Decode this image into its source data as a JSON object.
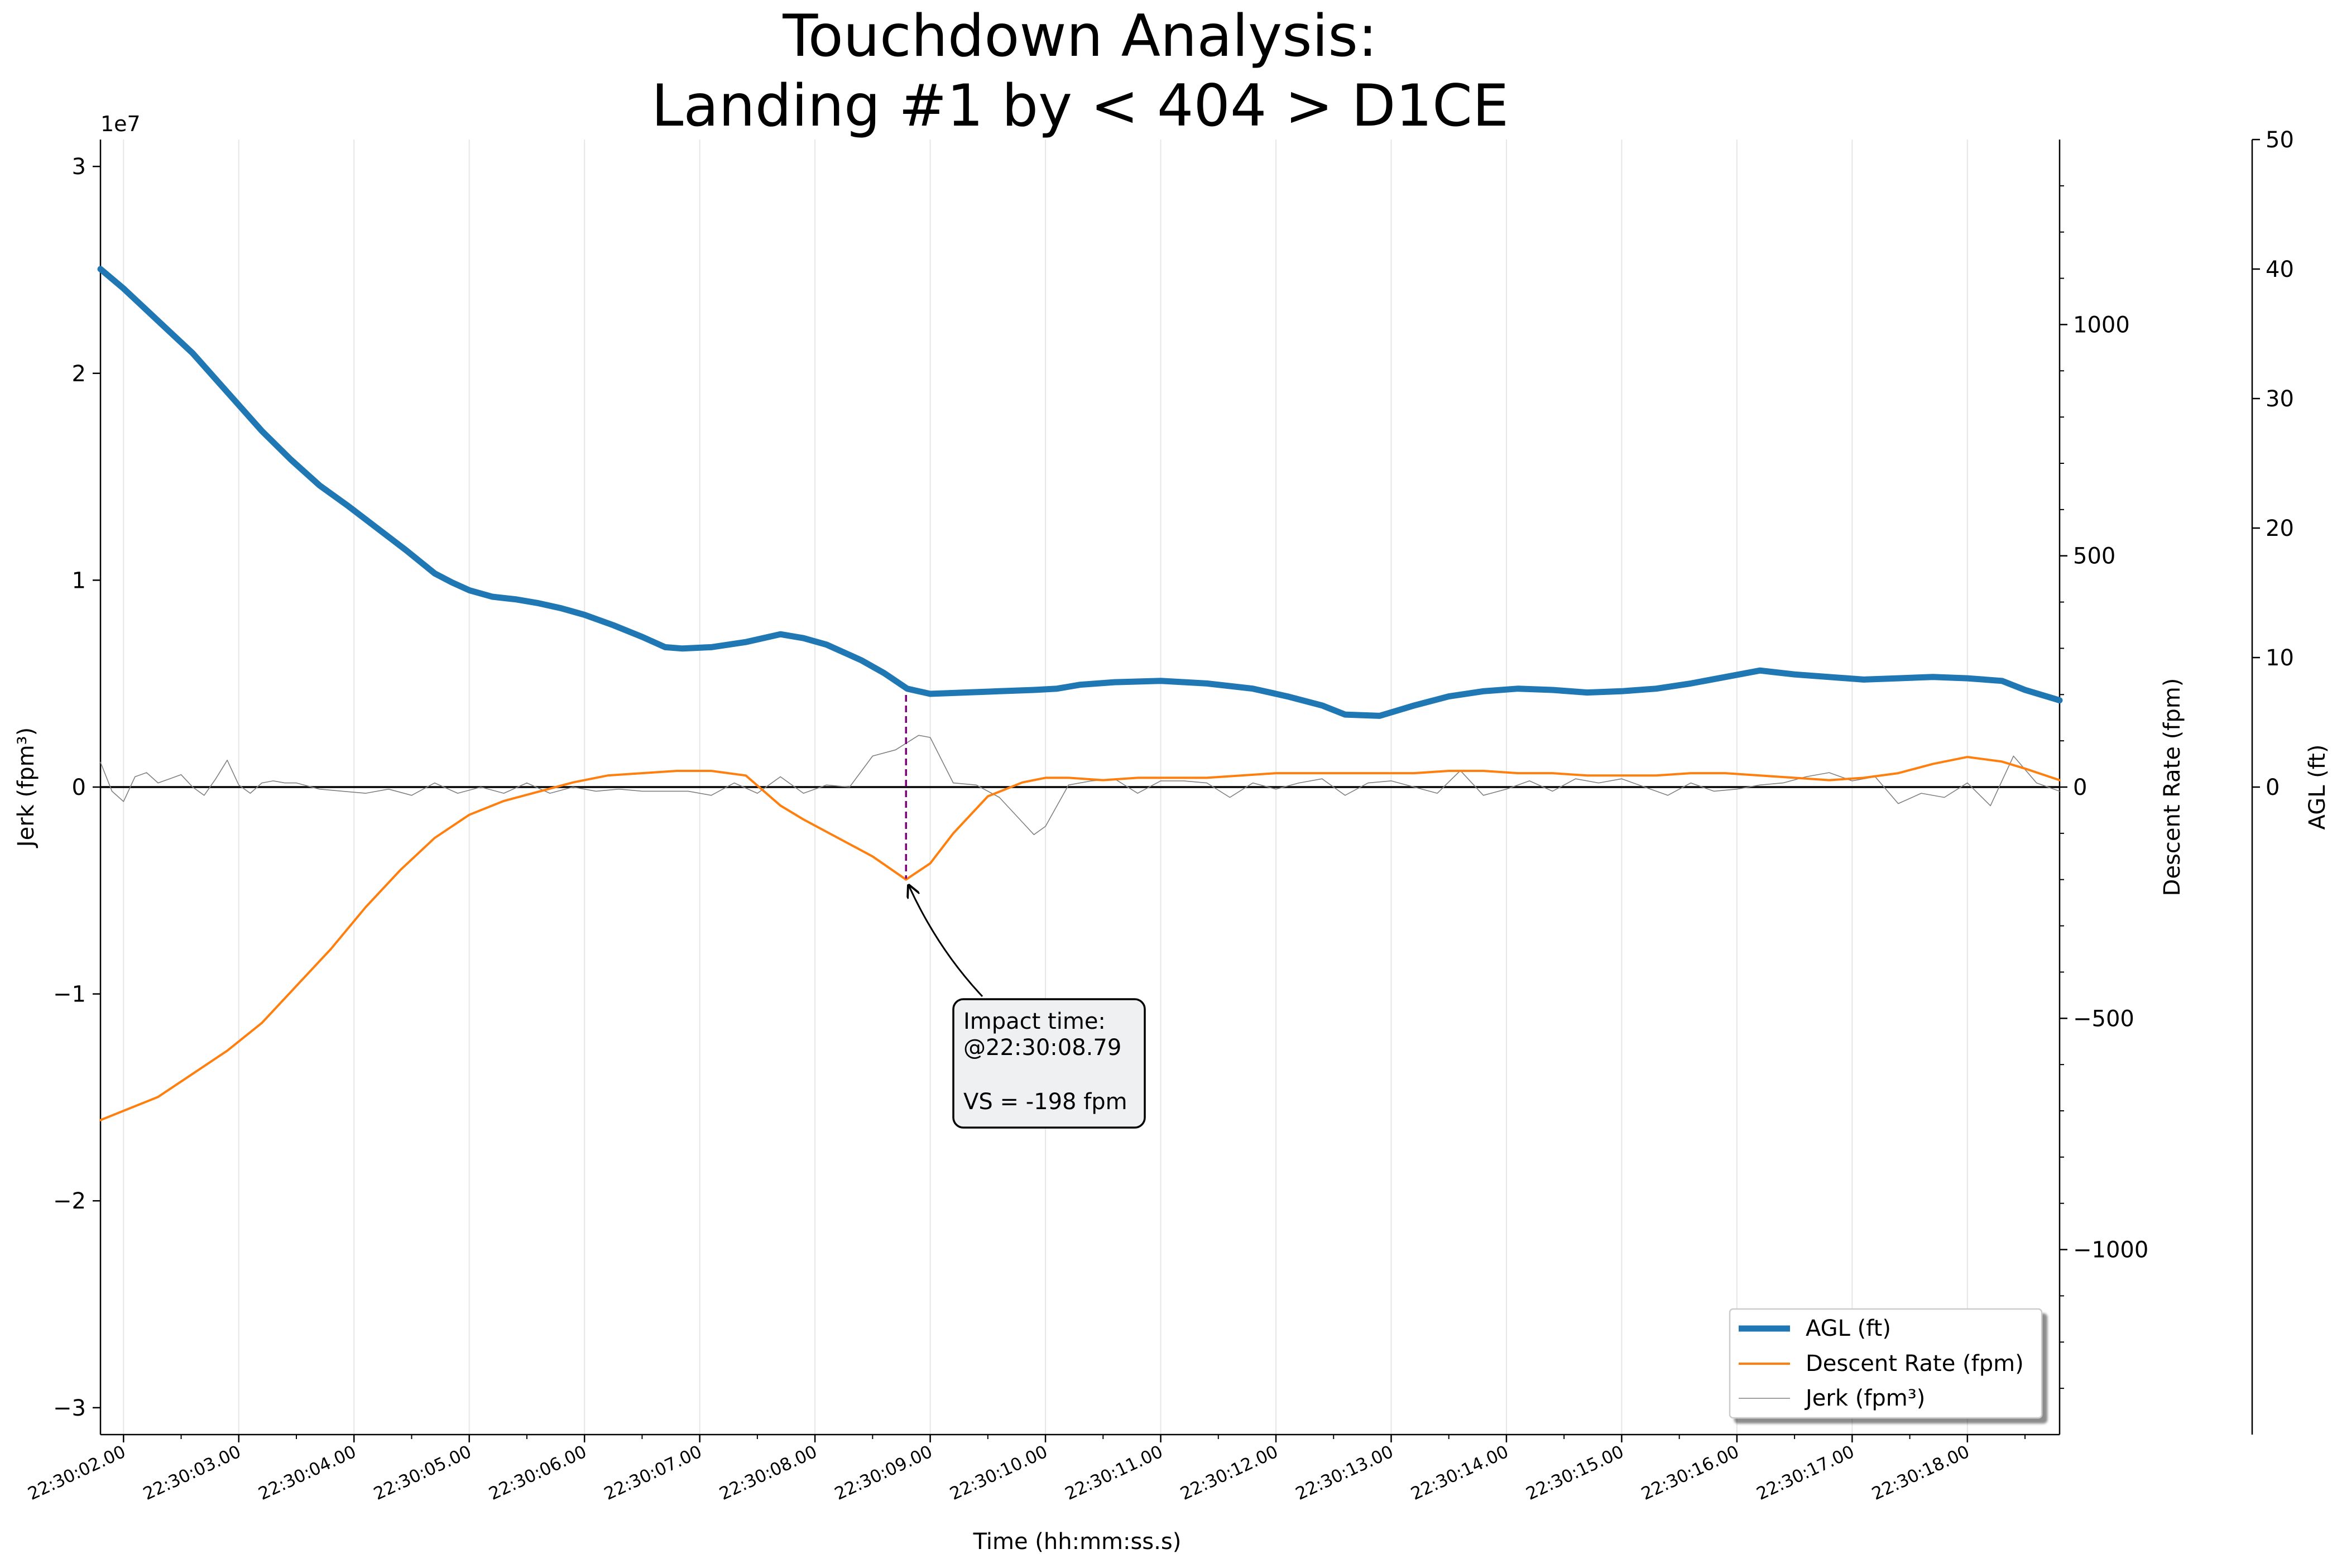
{
  "chart_data": {
    "type": "line",
    "title_line1": "Touchdown Analysis:",
    "title_line2": "Landing #1 by < 404 > D1CE",
    "xlabel": "Time (hh:mm:ss.s)",
    "ylabel_left": "Jerk (fpm³)",
    "ylabel_right1": "Descent Rate (fpm)",
    "ylabel_right2": "AGL (ft)",
    "left_axis_offset": "1e7",
    "x_range": [
      1.8,
      18.8
    ],
    "x_ticks": [
      {
        "value": 2,
        "label": "22:30:02.00"
      },
      {
        "value": 3,
        "label": "22:30:03.00"
      },
      {
        "value": 4,
        "label": "22:30:04.00"
      },
      {
        "value": 5,
        "label": "22:30:05.00"
      },
      {
        "value": 6,
        "label": "22:30:06.00"
      },
      {
        "value": 7,
        "label": "22:30:07.00"
      },
      {
        "value": 8,
        "label": "22:30:08.00"
      },
      {
        "value": 9,
        "label": "22:30:09.00"
      },
      {
        "value": 10,
        "label": "22:30:10.00"
      },
      {
        "value": 11,
        "label": "22:30:11.00"
      },
      {
        "value": 12,
        "label": "22:30:12.00"
      },
      {
        "value": 13,
        "label": "22:30:13.00"
      },
      {
        "value": 14,
        "label": "22:30:14.00"
      },
      {
        "value": 15,
        "label": "22:30:15.00"
      },
      {
        "value": 16,
        "label": "22:30:16.00"
      },
      {
        "value": 17,
        "label": "22:30:17.00"
      },
      {
        "value": 18,
        "label": "22:30:18.00"
      }
    ],
    "y_left_range": [
      -3.13,
      3.13
    ],
    "y_left_ticks": [
      {
        "value": 3,
        "label": "3"
      },
      {
        "value": 2,
        "label": "2"
      },
      {
        "value": 1,
        "label": "1"
      },
      {
        "value": 0,
        "label": "0"
      },
      {
        "value": -1,
        "label": "−1"
      },
      {
        "value": -2,
        "label": "−2"
      },
      {
        "value": -3,
        "label": "−3"
      }
    ],
    "y_right1_range": [
      -1400,
      1400
    ],
    "y_right1_ticks": [
      {
        "value": 1000,
        "label": "1000"
      },
      {
        "value": 500,
        "label": "500"
      },
      {
        "value": 0,
        "label": "0"
      },
      {
        "value": -500,
        "label": "−500"
      },
      {
        "value": -1000,
        "label": "−1000"
      }
    ],
    "y_right2_range": [
      -50,
      50
    ],
    "y_right2_ticks": [
      {
        "value": 50,
        "label": "50"
      },
      {
        "value": 40,
        "label": "40"
      },
      {
        "value": 30,
        "label": "30"
      },
      {
        "value": 20,
        "label": "20"
      },
      {
        "value": 10,
        "label": "10"
      },
      {
        "value": 0,
        "label": "0"
      }
    ],
    "series": [
      {
        "name": "AGL (ft)",
        "axis": "right2",
        "color": "#1f77b4",
        "x": [
          1.8,
          2.0,
          2.3,
          2.6,
          2.9,
          3.2,
          3.45,
          3.7,
          3.95,
          4.2,
          4.45,
          4.7,
          4.85,
          5.0,
          5.2,
          5.4,
          5.6,
          5.8,
          6.0,
          6.25,
          6.5,
          6.7,
          6.85,
          7.1,
          7.4,
          7.7,
          7.9,
          8.1,
          8.4,
          8.6,
          8.8,
          9.0,
          9.3,
          9.6,
          9.9,
          10.1,
          10.3,
          10.6,
          11.0,
          11.4,
          11.8,
          12.1,
          12.4,
          12.6,
          12.9,
          13.2,
          13.5,
          13.8,
          14.1,
          14.4,
          14.7,
          15.0,
          15.3,
          15.6,
          15.9,
          16.2,
          16.5,
          16.8,
          17.1,
          17.4,
          17.7,
          18.0,
          18.3,
          18.5,
          18.8
        ],
        "values": [
          40,
          38.5,
          36,
          33.5,
          30.5,
          27.5,
          25.3,
          23.3,
          21.7,
          20,
          18.3,
          16.5,
          15.8,
          15.2,
          14.7,
          14.5,
          14.2,
          13.8,
          13.3,
          12.5,
          11.6,
          10.8,
          10.7,
          10.8,
          11.2,
          11.8,
          11.5,
          11,
          9.8,
          8.8,
          7.6,
          7.2,
          7.3,
          7.4,
          7.5,
          7.6,
          7.9,
          8.1,
          8.2,
          8.0,
          7.6,
          7.0,
          6.3,
          5.6,
          5.5,
          6.3,
          7.0,
          7.4,
          7.6,
          7.5,
          7.3,
          7.4,
          7.6,
          8.0,
          8.5,
          9.0,
          8.7,
          8.5,
          8.3,
          8.4,
          8.5,
          8.4,
          8.2,
          7.5,
          6.7
        ]
      },
      {
        "name": "Descent Rate (fpm)",
        "axis": "right1",
        "color": "#ff7f0e",
        "x": [
          1.8,
          2.0,
          2.3,
          2.6,
          2.9,
          3.2,
          3.5,
          3.8,
          4.1,
          4.4,
          4.7,
          5.0,
          5.3,
          5.6,
          5.9,
          6.2,
          6.5,
          6.8,
          7.1,
          7.4,
          7.7,
          7.9,
          8.2,
          8.5,
          8.79,
          9.0,
          9.2,
          9.5,
          9.8,
          10.0,
          10.2,
          10.5,
          10.8,
          11.1,
          11.4,
          11.7,
          12.0,
          12.3,
          12.6,
          12.9,
          13.2,
          13.5,
          13.8,
          14.1,
          14.4,
          14.7,
          15.0,
          15.3,
          15.6,
          15.9,
          16.2,
          16.5,
          16.8,
          17.1,
          17.4,
          17.7,
          18.0,
          18.3,
          18.5,
          18.8
        ],
        "values": [
          -720,
          -700,
          -670,
          -620,
          -570,
          -510,
          -430,
          -350,
          -260,
          -180,
          -110,
          -60,
          -30,
          -10,
          10,
          25,
          30,
          35,
          35,
          25,
          -40,
          -70,
          -110,
          -150,
          -200,
          -165,
          -100,
          -20,
          10,
          20,
          20,
          15,
          20,
          20,
          20,
          25,
          30,
          30,
          30,
          30,
          30,
          35,
          35,
          30,
          30,
          25,
          25,
          25,
          30,
          30,
          25,
          20,
          15,
          20,
          30,
          50,
          65,
          55,
          40,
          15
        ]
      },
      {
        "name": "Jerk (fpm³)",
        "axis": "left",
        "color": "#808080",
        "x": [
          1.8,
          1.9,
          2.0,
          2.1,
          2.2,
          2.3,
          2.4,
          2.5,
          2.6,
          2.7,
          2.8,
          2.9,
          3.0,
          3.1,
          3.2,
          3.3,
          3.4,
          3.5,
          3.7,
          3.9,
          4.1,
          4.3,
          4.5,
          4.7,
          4.9,
          5.1,
          5.3,
          5.5,
          5.7,
          5.9,
          6.1,
          6.3,
          6.5,
          6.7,
          6.9,
          7.1,
          7.3,
          7.5,
          7.7,
          7.9,
          8.1,
          8.3,
          8.5,
          8.7,
          8.9,
          9.0,
          9.2,
          9.4,
          9.6,
          9.8,
          9.9,
          10.0,
          10.2,
          10.4,
          10.6,
          10.8,
          11.0,
          11.2,
          11.4,
          11.6,
          11.8,
          12.0,
          12.2,
          12.4,
          12.6,
          12.8,
          13.0,
          13.2,
          13.4,
          13.6,
          13.8,
          14.0,
          14.2,
          14.4,
          14.6,
          14.8,
          15.0,
          15.2,
          15.4,
          15.6,
          15.8,
          16.0,
          16.2,
          16.4,
          16.6,
          16.8,
          17.0,
          17.2,
          17.4,
          17.6,
          17.8,
          18.0,
          18.2,
          18.4,
          18.6,
          18.8
        ],
        "values": [
          0.12,
          -0.02,
          -0.07,
          0.05,
          0.07,
          0.02,
          0.04,
          0.06,
          0.0,
          -0.04,
          0.04,
          0.13,
          0.01,
          -0.03,
          0.02,
          0.03,
          0.02,
          0.02,
          -0.01,
          -0.02,
          -0.03,
          -0.01,
          -0.04,
          0.02,
          -0.03,
          0.0,
          -0.03,
          0.02,
          -0.03,
          0.0,
          -0.02,
          -0.01,
          -0.02,
          -0.02,
          -0.02,
          -0.04,
          0.02,
          -0.03,
          0.05,
          -0.03,
          0.01,
          0.0,
          0.15,
          0.18,
          0.25,
          0.24,
          0.02,
          0.01,
          -0.05,
          -0.17,
          -0.23,
          -0.19,
          0.01,
          0.03,
          0.04,
          -0.03,
          0.03,
          0.03,
          0.02,
          -0.05,
          0.02,
          -0.01,
          0.02,
          0.04,
          -0.04,
          0.02,
          0.03,
          0.0,
          -0.03,
          0.08,
          -0.04,
          -0.01,
          0.03,
          -0.02,
          0.04,
          0.02,
          0.04,
          0.0,
          -0.04,
          0.02,
          -0.02,
          -0.01,
          0.01,
          0.02,
          0.05,
          0.07,
          0.03,
          0.05,
          -0.08,
          -0.03,
          -0.05,
          0.02,
          -0.09,
          0.15,
          0.02,
          -0.02
        ]
      }
    ],
    "annotation": {
      "x": 8.79,
      "y_fpm": -198,
      "line1": "Impact time:",
      "line2": "@22:30:08.79",
      "line3": "VS = -198 fpm"
    },
    "grid": "vertical",
    "legend_position": "lower-right"
  }
}
